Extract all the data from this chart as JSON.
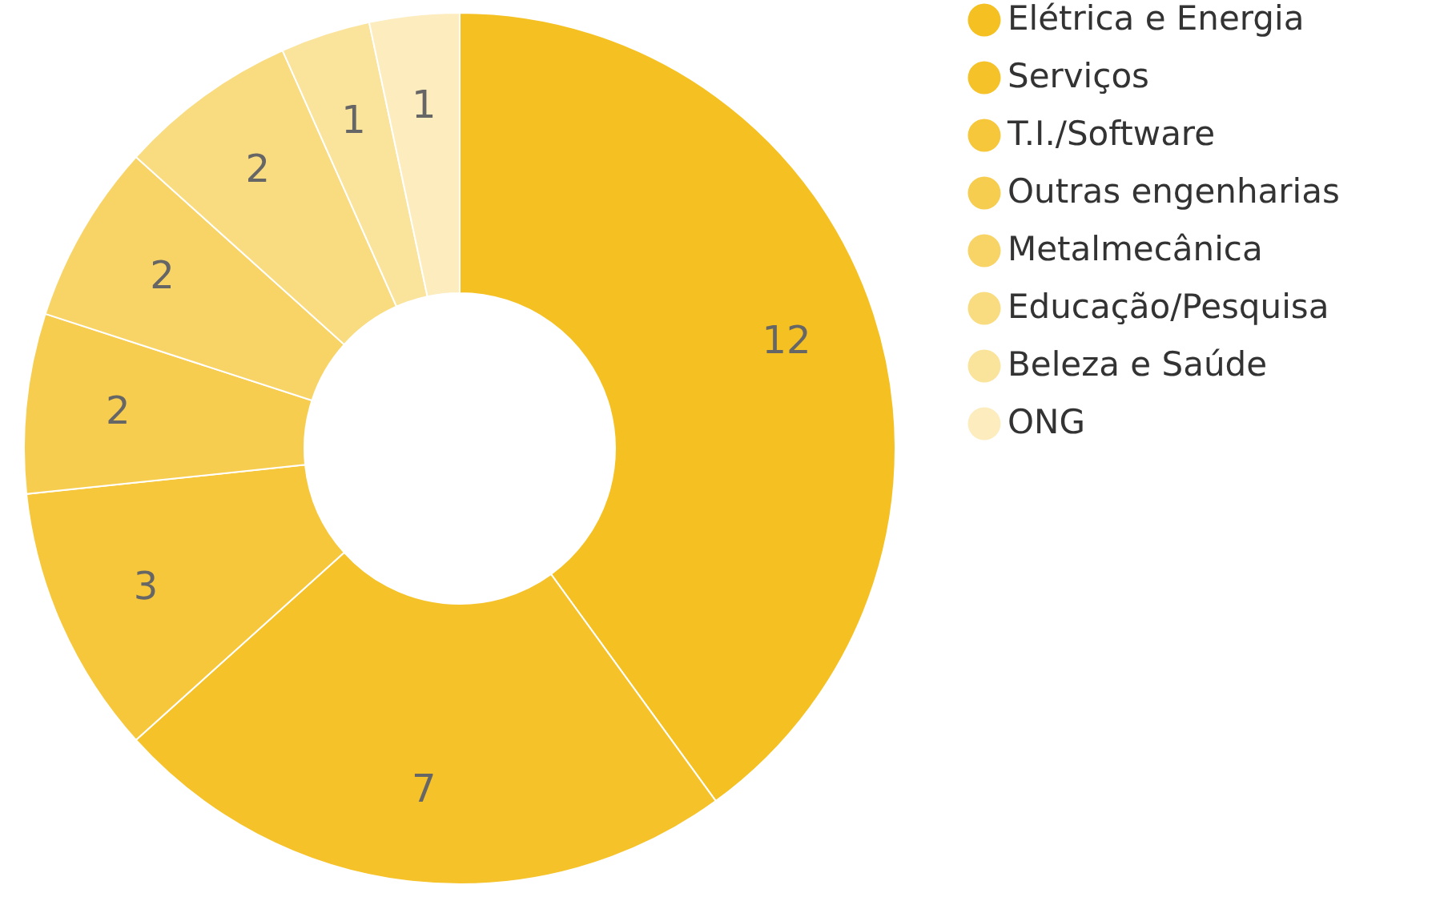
{
  "chart_data": {
    "type": "donut",
    "categories": [
      "Elétrica e Energia",
      "Serviços",
      "T.I./Software",
      "Outras engenharias",
      "Metalmecânica",
      "Educação/Pesquisa",
      "Beleza e Saúde",
      "ONG"
    ],
    "values": [
      12,
      7,
      3,
      2,
      2,
      2,
      1,
      1
    ],
    "colors": [
      "#f5c022",
      "#f5c22a",
      "#f6c73a",
      "#f7cd4f",
      "#f8d466",
      "#f9dc80",
      "#fae49c",
      "#fcecbe"
    ],
    "data_labels": true,
    "legend": "right"
  }
}
